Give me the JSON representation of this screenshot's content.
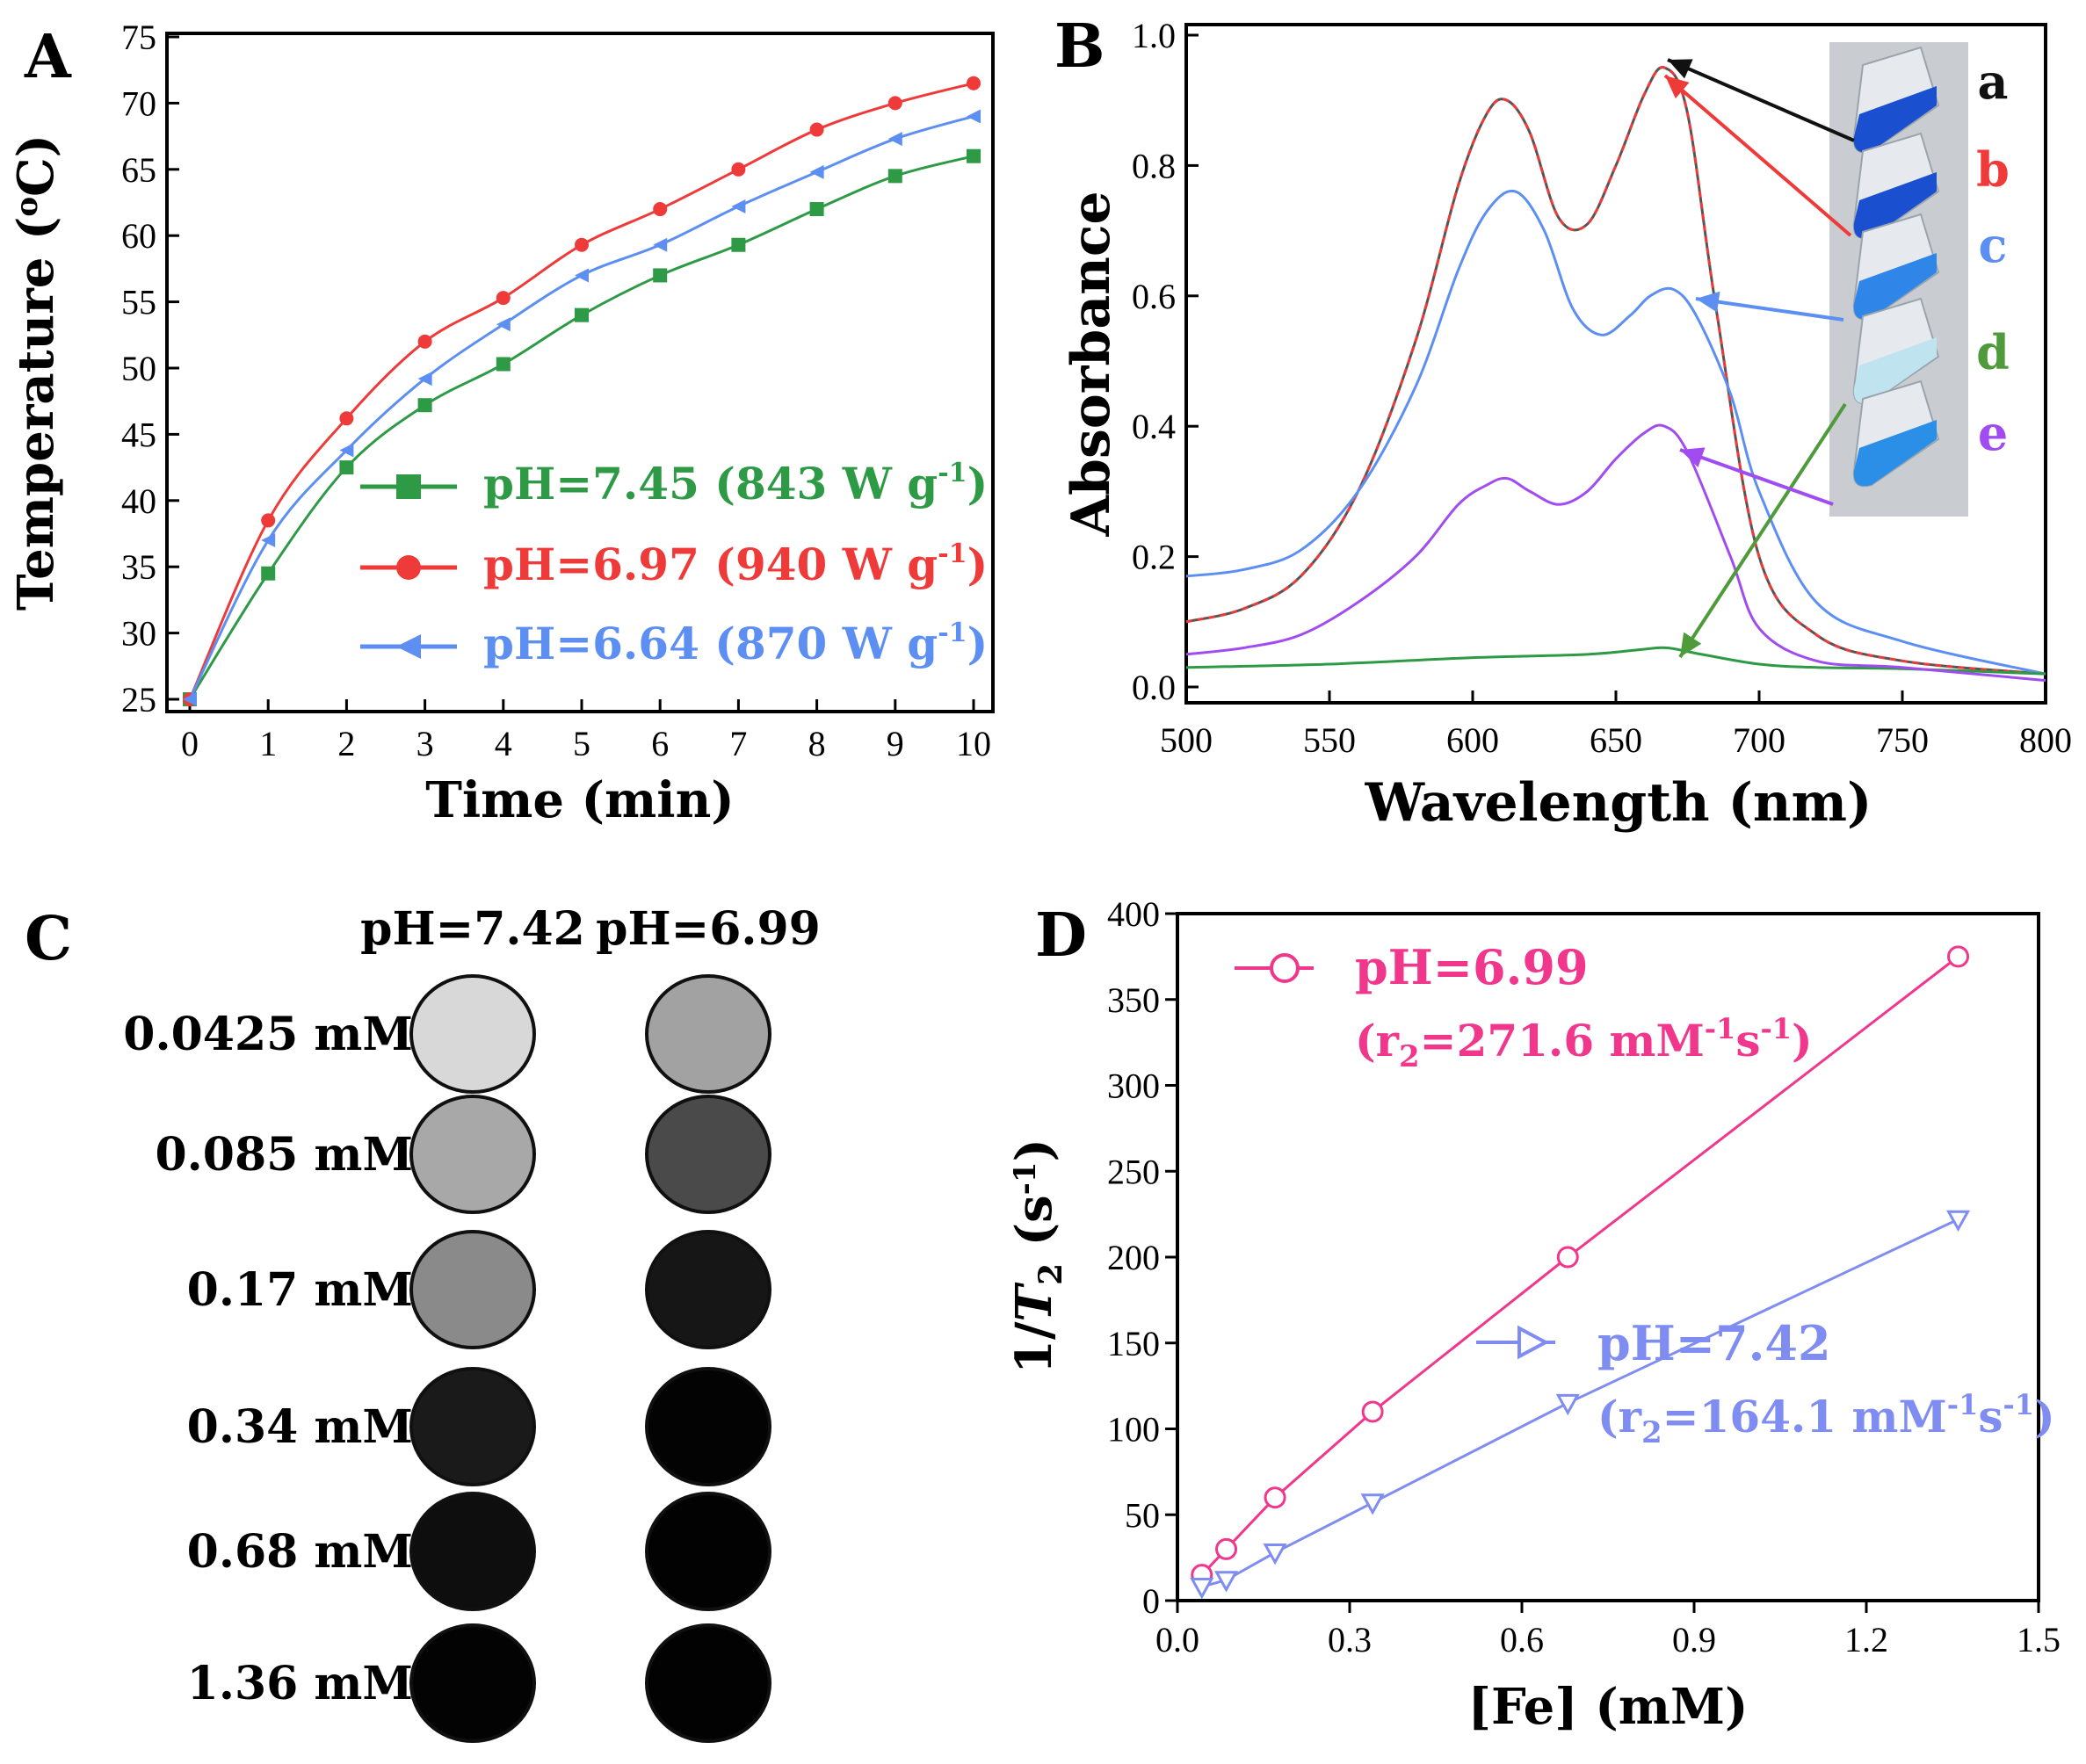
{
  "panel_labels": [
    "A",
    "B",
    "C",
    "D"
  ],
  "chart_data": [
    {
      "id": "A",
      "type": "line",
      "title": "",
      "xlabel": "Time (min)",
      "ylabel": "Temperature (",
      "ylabel_sup": "o",
      "ylabel_end": "C)",
      "xlim": [
        0,
        10
      ],
      "ylim": [
        25,
        75
      ],
      "xticks": [
        "0",
        "1",
        "2",
        "3",
        "4",
        "5",
        "6",
        "7",
        "8",
        "9",
        "10"
      ],
      "yticks": [
        "25",
        "30",
        "35",
        "40",
        "45",
        "50",
        "55",
        "60",
        "65",
        "70",
        "75"
      ],
      "x": [
        0,
        1,
        2,
        3,
        4,
        5,
        6,
        7,
        8,
        9,
        10
      ],
      "series": [
        {
          "name": "pH=7.45 (843 W g",
          "sup": "-1",
          "end": ")",
          "color": "#2e9a46",
          "marker": "square",
          "values": [
            25,
            34.5,
            42.5,
            47.2,
            50.3,
            54,
            57,
            59.3,
            62,
            64.5,
            66
          ]
        },
        {
          "name": "pH=6.97 (940 W g",
          "sup": "-1",
          "end": ")",
          "color": "#ef3a3a",
          "marker": "circle",
          "values": [
            25,
            38.5,
            46.2,
            52,
            55.3,
            59.3,
            62,
            65,
            68,
            70,
            71.5
          ]
        },
        {
          "name": "pH=6.64 (870 W g",
          "sup": "-1",
          "end": ")",
          "color": "#5d8ff3",
          "marker": "triangle-left",
          "values": [
            25,
            37,
            43.8,
            49.2,
            53.3,
            57,
            59.3,
            62.2,
            64.8,
            67.3,
            69
          ]
        }
      ],
      "legend": "bottom-right"
    },
    {
      "id": "B",
      "type": "line",
      "title": "",
      "xlabel": "Wavelength (nm)",
      "ylabel": "Absorbance",
      "xlim": [
        500,
        800
      ],
      "ylim": [
        -0.02,
        1.0
      ],
      "xticks": [
        "500",
        "550",
        "600",
        "650",
        "700",
        "750",
        "800"
      ],
      "yticks": [
        "0.0",
        "0.2",
        "0.4",
        "0.6",
        "0.8",
        "1.0"
      ],
      "series": [
        {
          "name": "a",
          "color": "#555555",
          "dashed": false,
          "x": [
            500,
            520,
            540,
            560,
            580,
            595,
            605,
            612,
            620,
            630,
            640,
            650,
            660,
            667,
            675,
            685,
            700,
            720,
            750,
            800
          ],
          "values": [
            0.1,
            0.12,
            0.17,
            0.3,
            0.53,
            0.77,
            0.88,
            0.9,
            0.85,
            0.72,
            0.71,
            0.8,
            0.91,
            0.95,
            0.88,
            0.58,
            0.2,
            0.08,
            0.04,
            0.02
          ]
        },
        {
          "name": "b",
          "color": "#ef3a3a",
          "dashed": true,
          "x": [
            500,
            520,
            540,
            560,
            580,
            595,
            605,
            612,
            620,
            630,
            640,
            650,
            660,
            667,
            675,
            685,
            700,
            720,
            750,
            800
          ],
          "values": [
            0.1,
            0.12,
            0.17,
            0.3,
            0.53,
            0.77,
            0.88,
            0.9,
            0.85,
            0.72,
            0.71,
            0.8,
            0.91,
            0.95,
            0.88,
            0.58,
            0.2,
            0.08,
            0.04,
            0.02
          ]
        },
        {
          "name": "c",
          "color": "#5d8ff3",
          "dashed": false,
          "x": [
            500,
            520,
            540,
            560,
            580,
            595,
            605,
            615,
            625,
            635,
            645,
            655,
            662,
            670,
            678,
            690,
            700,
            720,
            750,
            800
          ],
          "values": [
            0.17,
            0.18,
            0.21,
            0.3,
            0.46,
            0.64,
            0.73,
            0.76,
            0.7,
            0.58,
            0.54,
            0.57,
            0.6,
            0.61,
            0.57,
            0.45,
            0.3,
            0.13,
            0.07,
            0.02
          ]
        },
        {
          "name": "d",
          "color": "#2e9a46",
          "dashed": false,
          "x": [
            500,
            550,
            600,
            640,
            660,
            668,
            680,
            700,
            720,
            750,
            800
          ],
          "values": [
            0.03,
            0.035,
            0.045,
            0.05,
            0.058,
            0.06,
            0.05,
            0.035,
            0.03,
            0.028,
            0.02
          ]
        },
        {
          "name": "e",
          "color": "#a14cf0",
          "dashed": false,
          "x": [
            500,
            520,
            540,
            560,
            580,
            595,
            605,
            612,
            620,
            630,
            640,
            650,
            660,
            667,
            675,
            690,
            700,
            720,
            750,
            800
          ],
          "values": [
            0.05,
            0.06,
            0.08,
            0.13,
            0.2,
            0.28,
            0.31,
            0.32,
            0.3,
            0.28,
            0.3,
            0.35,
            0.39,
            0.4,
            0.36,
            0.2,
            0.09,
            0.04,
            0.03,
            0.01
          ]
        }
      ],
      "inset_labels": [
        {
          "text": "a",
          "color": "#111111"
        },
        {
          "text": "b",
          "color": "#ef3a3a"
        },
        {
          "text": "c",
          "color": "#5d8ff3"
        },
        {
          "text": "d",
          "color": "#4f9a3a"
        },
        {
          "text": "e",
          "color": "#a14cf0"
        }
      ]
    },
    {
      "id": "D",
      "type": "line",
      "title": "",
      "xlabel": "[Fe] (mM)",
      "ylabel_pre": "1/",
      "ylabel_italic": "T",
      "ylabel_sub": "2",
      "ylabel_mid": " (s",
      "ylabel_sup": "-1",
      "ylabel_end": ")",
      "xlim": [
        0,
        1.5
      ],
      "ylim": [
        0,
        400
      ],
      "xticks": [
        "0.0",
        "0.3",
        "0.6",
        "0.9",
        "1.2",
        "1.5"
      ],
      "yticks": [
        "0",
        "50",
        "100",
        "150",
        "200",
        "250",
        "300",
        "350",
        "400"
      ],
      "series": [
        {
          "name": "pH=6.99",
          "color": "#f0378c",
          "marker": "circle",
          "r2_pre": "(r",
          "r2_sub": "2",
          "r2_mid": "=271.6 mM",
          "r2_sup1": "-1",
          "r2_s": "s",
          "r2_sup2": "-1",
          "r2_end": ")",
          "x": [
            0.0425,
            0.085,
            0.17,
            0.34,
            0.68,
            1.36
          ],
          "values": [
            15,
            30,
            60,
            110,
            200,
            375
          ]
        },
        {
          "name": "pH=7.42",
          "color": "#7f8cf2",
          "marker": "triangle-down",
          "r2_pre": "(r",
          "r2_sub": "2",
          "r2_mid": "=164.1 mM",
          "r2_sup1": "-1",
          "r2_s": "s",
          "r2_sup2": "-1",
          "r2_end": ")",
          "x": [
            0.0425,
            0.085,
            0.17,
            0.34,
            0.68,
            1.36
          ],
          "values": [
            8,
            12,
            28,
            57,
            115,
            222
          ]
        }
      ]
    }
  ],
  "mri": {
    "columns": [
      "pH=7.42",
      "pH=6.99"
    ],
    "rows": [
      "0.0425 mM",
      "0.085 mM",
      "0.17 mM",
      "0.34 mM",
      "0.68 mM",
      "1.36 mM"
    ],
    "intensities_742": [
      "#d8d8d8",
      "#a8a8a8",
      "#8a8a8a",
      "#1a1a1a",
      "#0e0e0e",
      "#030303"
    ],
    "intensities_699": [
      "#a2a2a2",
      "#4a4a4a",
      "#161616",
      "#030303",
      "#020202",
      "#020202"
    ]
  }
}
